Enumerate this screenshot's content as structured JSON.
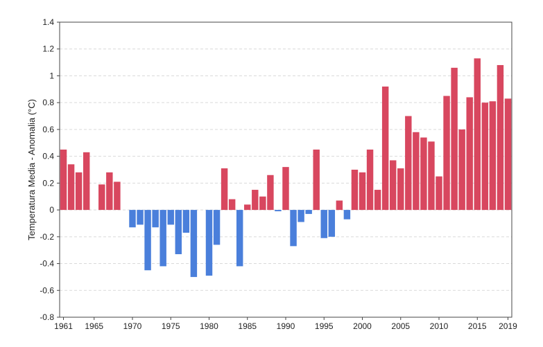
{
  "chart_data": {
    "type": "bar",
    "title": "",
    "xlabel": "",
    "ylabel": "Temperatura Media - Anomalia (°C)",
    "ylim": [
      -0.8,
      1.4
    ],
    "yticks": [
      -0.8,
      -0.6,
      -0.4,
      -0.2,
      0,
      0.2,
      0.4,
      0.6,
      0.8,
      1,
      1.2,
      1.4
    ],
    "xlim": [
      1961,
      2019
    ],
    "xtick_labels": [
      "1961",
      "1965",
      "1970",
      "1975",
      "1980",
      "1985",
      "1990",
      "1995",
      "2000",
      "2005",
      "2010",
      "2015",
      "2019"
    ],
    "grid": "horizontal dashed",
    "legend": "none",
    "colors": {
      "positive": "#d8475f",
      "negative": "#4a7fdb"
    },
    "x": [
      1961,
      1962,
      1963,
      1964,
      1965,
      1966,
      1967,
      1968,
      1969,
      1970,
      1971,
      1972,
      1973,
      1974,
      1975,
      1976,
      1977,
      1978,
      1979,
      1980,
      1981,
      1982,
      1983,
      1984,
      1985,
      1986,
      1987,
      1988,
      1989,
      1990,
      1991,
      1992,
      1993,
      1994,
      1995,
      1996,
      1997,
      1998,
      1999,
      2000,
      2001,
      2002,
      2003,
      2004,
      2005,
      2006,
      2007,
      2008,
      2009,
      2010,
      2011,
      2012,
      2013,
      2014,
      2015,
      2016,
      2017,
      2018,
      2019
    ],
    "values": [
      0.45,
      0.34,
      0.28,
      0.43,
      0.0,
      0.19,
      0.28,
      0.21,
      0.0,
      -0.13,
      -0.11,
      -0.45,
      -0.13,
      -0.42,
      -0.11,
      -0.33,
      -0.17,
      -0.5,
      0.0,
      -0.49,
      -0.26,
      0.31,
      0.08,
      -0.42,
      0.04,
      0.15,
      0.1,
      0.26,
      -0.01,
      0.32,
      -0.27,
      -0.09,
      -0.03,
      0.45,
      -0.21,
      -0.2,
      0.07,
      -0.07,
      0.3,
      0.28,
      0.45,
      0.15,
      0.92,
      0.37,
      0.31,
      0.7,
      0.58,
      0.54,
      0.51,
      0.25,
      0.85,
      1.06,
      0.6,
      0.84,
      1.13,
      0.8,
      0.81,
      1.08,
      0.83
    ]
  }
}
